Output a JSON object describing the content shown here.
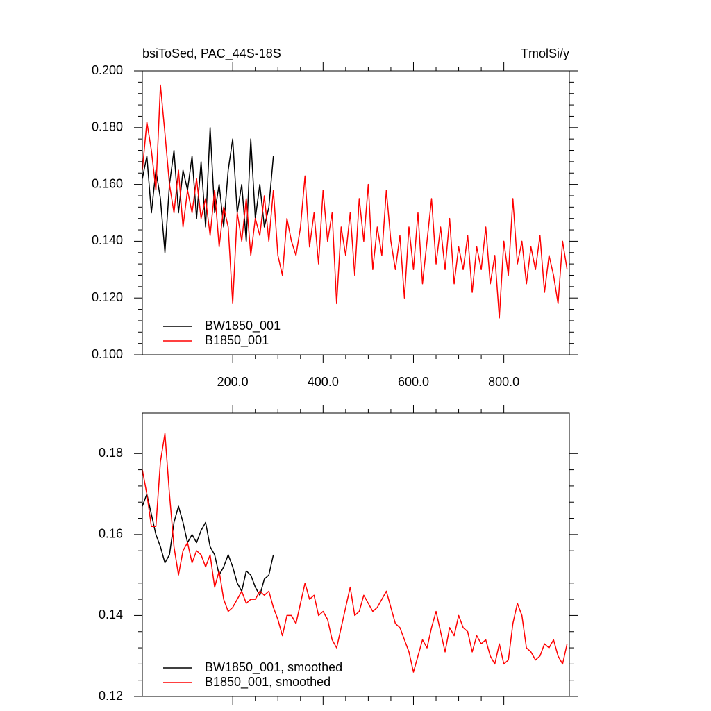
{
  "chart_data": [
    {
      "type": "line",
      "title": "bsiToSed, PAC_44S-18S",
      "units_label": "TmolSi/y",
      "xlim": [
        0,
        945
      ],
      "ylim": [
        0.1,
        0.2
      ],
      "xticks": [
        {
          "value": 200,
          "label": "200.0"
        },
        {
          "value": 400,
          "label": "400.0"
        },
        {
          "value": 600,
          "label": "600.0"
        },
        {
          "value": 800,
          "label": "800.0"
        }
      ],
      "yticks": [
        {
          "value": 0.1,
          "label": "0.100"
        },
        {
          "value": 0.12,
          "label": "0.120"
        },
        {
          "value": 0.14,
          "label": "0.140"
        },
        {
          "value": 0.16,
          "label": "0.160"
        },
        {
          "value": 0.18,
          "label": "0.180"
        },
        {
          "value": 0.2,
          "label": "0.200"
        }
      ],
      "legend": "lower left",
      "series": [
        {
          "name": "BW1850_001",
          "color": "#000000",
          "x": [
            0,
            10,
            20,
            30,
            40,
            50,
            60,
            70,
            80,
            90,
            100,
            110,
            120,
            130,
            140,
            150,
            160,
            170,
            180,
            190,
            200,
            210,
            220,
            230,
            240,
            250,
            260,
            270,
            280,
            290
          ],
          "values": [
            0.162,
            0.17,
            0.15,
            0.165,
            0.155,
            0.136,
            0.16,
            0.172,
            0.15,
            0.165,
            0.158,
            0.17,
            0.148,
            0.168,
            0.145,
            0.18,
            0.15,
            0.16,
            0.145,
            0.165,
            0.176,
            0.15,
            0.16,
            0.14,
            0.176,
            0.148,
            0.16,
            0.145,
            0.152,
            0.17
          ]
        },
        {
          "name": "B1850_001",
          "color": "#ff0000",
          "x": [
            0,
            10,
            20,
            30,
            40,
            50,
            60,
            70,
            80,
            90,
            100,
            110,
            120,
            130,
            140,
            150,
            160,
            170,
            180,
            190,
            200,
            210,
            220,
            230,
            240,
            250,
            260,
            270,
            280,
            290,
            300,
            310,
            320,
            330,
            340,
            350,
            360,
            370,
            380,
            390,
            400,
            410,
            420,
            430,
            440,
            450,
            460,
            470,
            480,
            490,
            500,
            510,
            520,
            530,
            540,
            550,
            560,
            570,
            580,
            590,
            600,
            610,
            620,
            630,
            640,
            650,
            660,
            670,
            680,
            690,
            700,
            710,
            720,
            730,
            740,
            750,
            760,
            770,
            780,
            790,
            800,
            810,
            820,
            830,
            840,
            850,
            860,
            870,
            880,
            890,
            900,
            910,
            920,
            930,
            940
          ],
          "values": [
            0.165,
            0.182,
            0.172,
            0.158,
            0.195,
            0.178,
            0.16,
            0.15,
            0.165,
            0.145,
            0.158,
            0.15,
            0.162,
            0.148,
            0.155,
            0.142,
            0.158,
            0.138,
            0.152,
            0.145,
            0.118,
            0.15,
            0.14,
            0.155,
            0.135,
            0.148,
            0.142,
            0.156,
            0.14,
            0.158,
            0.135,
            0.128,
            0.148,
            0.14,
            0.135,
            0.145,
            0.163,
            0.138,
            0.15,
            0.132,
            0.158,
            0.14,
            0.15,
            0.118,
            0.145,
            0.135,
            0.15,
            0.128,
            0.155,
            0.14,
            0.16,
            0.13,
            0.145,
            0.135,
            0.158,
            0.14,
            0.13,
            0.142,
            0.12,
            0.145,
            0.13,
            0.15,
            0.125,
            0.14,
            0.155,
            0.132,
            0.145,
            0.13,
            0.148,
            0.125,
            0.138,
            0.13,
            0.142,
            0.122,
            0.138,
            0.13,
            0.145,
            0.125,
            0.135,
            0.113,
            0.14,
            0.128,
            0.155,
            0.132,
            0.14,
            0.125,
            0.138,
            0.13,
            0.142,
            0.122,
            0.135,
            0.128,
            0.118,
            0.14,
            0.13
          ]
        }
      ]
    },
    {
      "type": "line",
      "xlim": [
        0,
        945
      ],
      "ylim": [
        0.12,
        0.19
      ],
      "xticks": [
        200,
        400,
        600,
        800
      ],
      "yticks": [
        {
          "value": 0.12,
          "label": "0.12"
        },
        {
          "value": 0.14,
          "label": "0.14"
        },
        {
          "value": 0.16,
          "label": "0.16"
        },
        {
          "value": 0.18,
          "label": "0.18"
        }
      ],
      "legend": "lower left",
      "series": [
        {
          "name": "BW1850_001, smoothed",
          "color": "#000000",
          "x": [
            0,
            10,
            20,
            30,
            40,
            50,
            60,
            70,
            80,
            90,
            100,
            110,
            120,
            130,
            140,
            150,
            160,
            170,
            180,
            190,
            200,
            210,
            220,
            230,
            240,
            250,
            260,
            270,
            280,
            290
          ],
          "values": [
            0.167,
            0.17,
            0.165,
            0.16,
            0.157,
            0.153,
            0.155,
            0.163,
            0.167,
            0.163,
            0.158,
            0.16,
            0.158,
            0.161,
            0.163,
            0.157,
            0.155,
            0.15,
            0.152,
            0.155,
            0.152,
            0.148,
            0.146,
            0.151,
            0.15,
            0.147,
            0.145,
            0.149,
            0.15,
            0.155
          ]
        },
        {
          "name": "B1850_001, smoothed",
          "color": "#ff0000",
          "x": [
            0,
            10,
            20,
            30,
            40,
            50,
            60,
            70,
            80,
            90,
            100,
            110,
            120,
            130,
            140,
            150,
            160,
            170,
            180,
            190,
            200,
            210,
            220,
            230,
            240,
            250,
            260,
            270,
            280,
            290,
            300,
            310,
            320,
            330,
            340,
            350,
            360,
            370,
            380,
            390,
            400,
            410,
            420,
            430,
            440,
            450,
            460,
            470,
            480,
            490,
            500,
            510,
            520,
            530,
            540,
            550,
            560,
            570,
            580,
            590,
            600,
            610,
            620,
            630,
            640,
            650,
            660,
            670,
            680,
            690,
            700,
            710,
            720,
            730,
            740,
            750,
            760,
            770,
            780,
            790,
            800,
            810,
            820,
            830,
            840,
            850,
            860,
            870,
            880,
            890,
            900,
            910,
            920,
            930,
            940
          ],
          "values": [
            0.176,
            0.17,
            0.162,
            0.162,
            0.178,
            0.185,
            0.17,
            0.157,
            0.15,
            0.156,
            0.158,
            0.153,
            0.156,
            0.155,
            0.152,
            0.155,
            0.147,
            0.151,
            0.144,
            0.141,
            0.142,
            0.144,
            0.146,
            0.143,
            0.144,
            0.144,
            0.146,
            0.145,
            0.146,
            0.142,
            0.139,
            0.135,
            0.14,
            0.14,
            0.138,
            0.143,
            0.148,
            0.144,
            0.145,
            0.14,
            0.141,
            0.139,
            0.134,
            0.132,
            0.137,
            0.142,
            0.147,
            0.14,
            0.141,
            0.145,
            0.143,
            0.141,
            0.142,
            0.144,
            0.146,
            0.142,
            0.138,
            0.137,
            0.134,
            0.131,
            0.126,
            0.13,
            0.134,
            0.132,
            0.137,
            0.141,
            0.136,
            0.131,
            0.137,
            0.135,
            0.14,
            0.137,
            0.136,
            0.131,
            0.135,
            0.133,
            0.134,
            0.13,
            0.128,
            0.133,
            0.128,
            0.129,
            0.138,
            0.143,
            0.14,
            0.132,
            0.131,
            0.129,
            0.13,
            0.133,
            0.132,
            0.134,
            0.13,
            0.128,
            0.133
          ]
        }
      ]
    }
  ]
}
